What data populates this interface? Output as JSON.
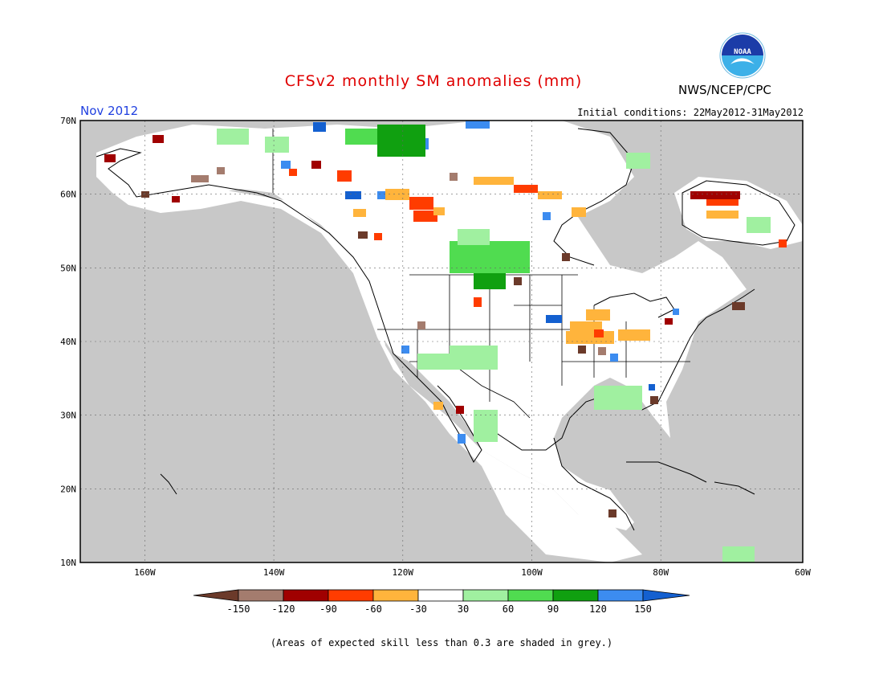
{
  "header": {
    "title": "CFSv2 monthly SM anomalies (mm)",
    "organization": "NWS/NCEP/CPC",
    "logo_text": "NOAA",
    "valid_month": "Nov 2012",
    "initial_conditions": "Initial conditions: 22May2012-31May2012"
  },
  "map": {
    "lat_labels": [
      "70N",
      "60N",
      "50N",
      "40N",
      "30N",
      "20N",
      "10N"
    ],
    "lon_labels": [
      "160W",
      "140W",
      "120W",
      "100W",
      "80W",
      "60W"
    ],
    "lat_range": [
      10,
      70
    ],
    "lon_range": [
      -172,
      -60
    ],
    "no_skill_color": "#c8c8c8"
  },
  "colorbar": {
    "labels": [
      "-150",
      "-120",
      "-90",
      "-60",
      "-30",
      "30",
      "60",
      "90",
      "120",
      "150"
    ],
    "colors": [
      "#6b3a2a",
      "#a47c6e",
      "#a00000",
      "#ff3c00",
      "#ffb43c",
      "#ffffff",
      "#a0f0a0",
      "#50dc50",
      "#10a010",
      "#3c8cf0",
      "#1460d0"
    ]
  },
  "footnote": "(Areas of expected skill less than 0.3 are shaded in grey.)"
}
